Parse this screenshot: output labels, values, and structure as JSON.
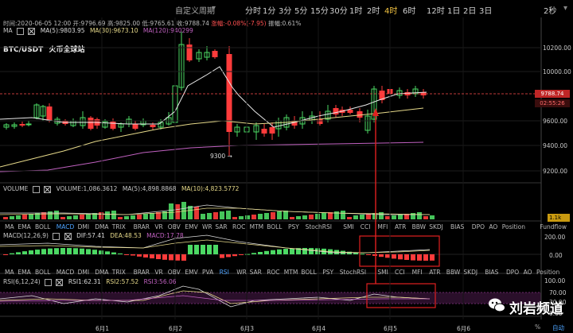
{
  "toolbar": {
    "custom_period": "自定义周期",
    "intervals": [
      "分时",
      "1分",
      "3分",
      "5分",
      "15分",
      "30分",
      "1时",
      "2时",
      "4时",
      "6时",
      "12时",
      "1日",
      "2日",
      "3日"
    ],
    "active_interval": "4时",
    "right_label": "2秒"
  },
  "info_line": {
    "time": "时间:2020-06-05 12:00",
    "open": "开:9796.69",
    "high": "高:9825.00",
    "low": "低:9765.61",
    "close": "收:9788.74",
    "change": "涨幅:-0.08%(-7.95)",
    "amplitude": "振幅:0.61%"
  },
  "main_chart": {
    "symbol": "BTC/USDT",
    "exchange": "火币全球站",
    "ma_label": "MA",
    "ma5": "MA(5):9803.95",
    "ma30": "MA(30):9673.10",
    "ma120_prefix": "MA(120):94",
    "ma120_suffix": "0299",
    "annotation_low": "9300",
    "price_ticks": [
      "10200.00",
      "10000.00",
      "9800.00",
      "9600.00",
      "9400.00",
      "9200.00"
    ],
    "current_price": "9788.74",
    "countdown": "02:55:26",
    "colors": {
      "up": "#4cd964",
      "down": "#ff3b3b",
      "ma5": "#e8e8e8",
      "ma30": "#e6d98a",
      "ma120": "#c061c0",
      "current_line": "#ff4d4d",
      "highlight": "#e02020"
    }
  },
  "volume_panel": {
    "label": "VOLUME",
    "volume": "VOLUME:1,086.3612",
    "ma5": "MA(5):4,898.8868",
    "ma10": "MA(10):4,823.5772",
    "current": "1.1k"
  },
  "indicator_tabs": [
    "MA",
    "EMA",
    "BOLL",
    "MACD",
    "DMI",
    "DMA",
    "TRIX",
    "BRAR",
    "VR",
    "OBV",
    "EMV",
    "WR",
    "SAR",
    "ROC",
    "MTM",
    "BOLL",
    "PSY",
    "StochRSI",
    "SMI",
    "CCI",
    "MFI",
    "ATR",
    "BBW",
    "SKDJ",
    "BIAS",
    "DPO",
    "AO",
    "Position",
    "Fundflow"
  ],
  "indicator_tabs_lower": [
    "MA",
    "EMA",
    "BOLL",
    "MACD",
    "DMI",
    "DMA",
    "TRIX",
    "BRAR",
    "VR",
    "OBV",
    "EMV",
    "PVA",
    "RSI",
    "WR",
    "SAR",
    "ROC",
    "MTM",
    "BOLL",
    "PSY",
    "StochRSI",
    "SMI",
    "CCI",
    "MFI",
    "ATR",
    "BBW",
    "SKDJ",
    "BIAS",
    "DPO",
    "AO",
    "Position",
    "Fundflow"
  ],
  "macd_panel": {
    "label": "MACD(12,26,9)",
    "dif": "DIF:57.41",
    "dea": "DEA:48.53",
    "macd": "MACD:17.78",
    "ticks": [
      "200.00",
      "0.00"
    ]
  },
  "rsi_panel": {
    "label": "RSI(6,12,24)",
    "rsi1": "RSI1:62.31",
    "rsi2": "RSI2:57.52",
    "rsi3": "RSI3:56.06",
    "ticks": [
      "100.00",
      "70.00",
      "30.00",
      "0.00"
    ]
  },
  "time_axis": [
    "6月1",
    "6月2",
    "6月3",
    "6月4",
    "6月5",
    "6月6"
  ],
  "bottom_right": "自动",
  "bottom_right_symbol": "%",
  "watermark": "刘岩频道"
}
